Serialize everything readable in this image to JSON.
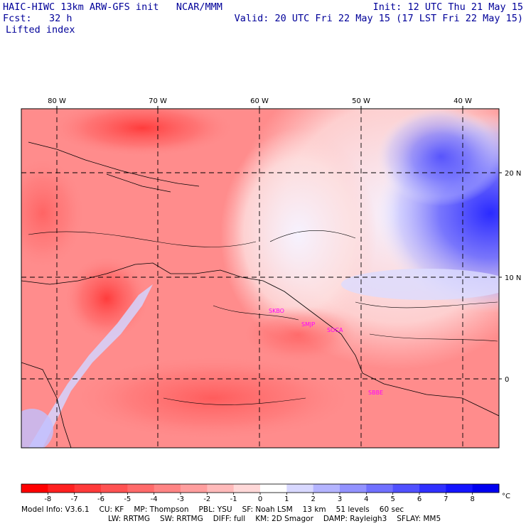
{
  "header": {
    "title": "HAIC-HIWC 13km ARW-GFS init   NCAR/MMM",
    "forecast": "Fcst:   32 h",
    "init": "Init: 12 UTC Thu 21 May 15",
    "valid": "Valid: 20 UTC Fri 22 May 15 (17 LST Fri 22 May 15)",
    "field": "Lifted index"
  },
  "map": {
    "lon_labels": [
      "80 W",
      "70 W",
      "60 W",
      "50 W",
      "40 W"
    ],
    "lat_labels": [
      "20 N",
      "10 N",
      "0"
    ],
    "stations": [
      "SKBO",
      "SMJP",
      "SOCA",
      "SBBE"
    ],
    "colors": {
      "frame": "#000000",
      "grid": "#000000",
      "station": "#ff00ff"
    }
  },
  "colorbar": {
    "labels": [
      "-8",
      "-7",
      "-6",
      "-5",
      "-4",
      "-3",
      "-2",
      "-1",
      "0",
      "1",
      "2",
      "3",
      "4",
      "5",
      "6",
      "7",
      "8"
    ],
    "unit": "°C",
    "colors": [
      "#ff0000",
      "#ff2020",
      "#ff3a3a",
      "#ff5252",
      "#ff6a6a",
      "#ff8484",
      "#ff9e9e",
      "#ffbaba",
      "#ffd8d8",
      "#ffffff",
      "#d8d8ff",
      "#b4b4ff",
      "#9292ff",
      "#7070ff",
      "#5050ff",
      "#3030ff",
      "#1414ff",
      "#0000f0"
    ]
  },
  "footer": {
    "line1": [
      "Model Info: V3.6.1",
      "CU: KF",
      "MP: Thompson",
      "PBL: YSU",
      "SF: Noah LSM",
      "13 km",
      "51 levels",
      "60 sec"
    ],
    "line2": [
      "LW: RRTMG",
      "SW: RRTMG",
      "DIFF: full",
      "KM: 2D Smagor",
      "DAMP: Rayleigh3",
      "SFLAY: MM5"
    ]
  }
}
